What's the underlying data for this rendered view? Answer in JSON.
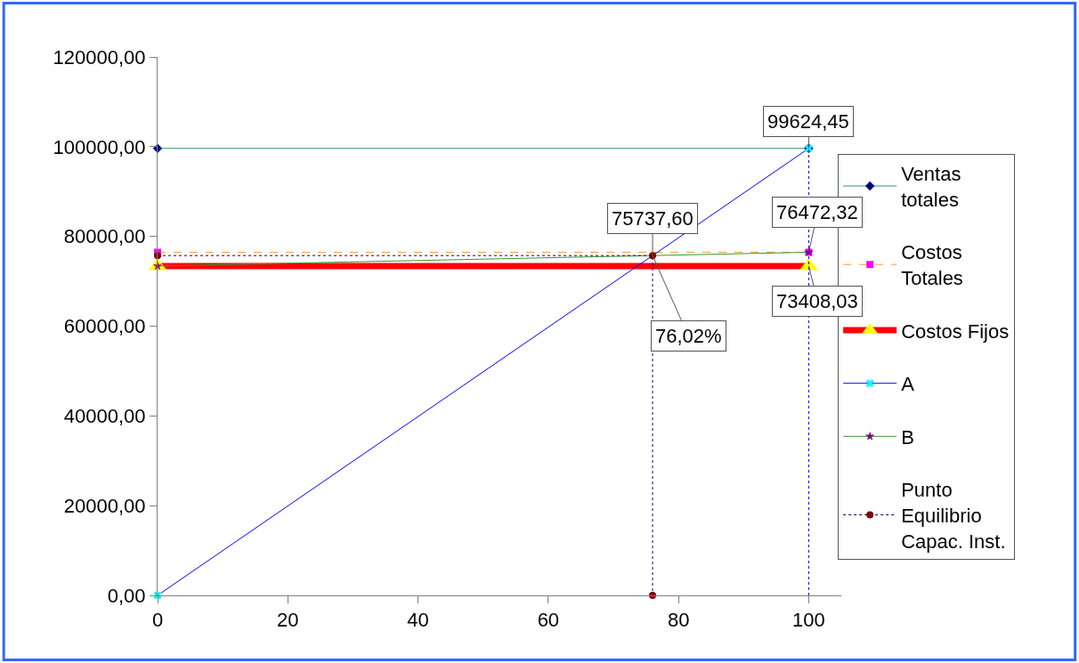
{
  "chart_data": {
    "type": "line",
    "xlim": [
      0,
      105
    ],
    "xticks": [
      0,
      20,
      40,
      60,
      80,
      100
    ],
    "ylim": [
      0,
      120000
    ],
    "yticks": [
      {
        "value": 0,
        "label": "0,00"
      },
      {
        "value": 20000,
        "label": "20000,00"
      },
      {
        "value": 40000,
        "label": "40000,00"
      },
      {
        "value": 60000,
        "label": "60000,00"
      },
      {
        "value": 80000,
        "label": "80000,00"
      },
      {
        "value": 100000,
        "label": "100000,00"
      },
      {
        "value": 120000,
        "label": "120000,00"
      }
    ],
    "grid": false,
    "legend": "right",
    "series": [
      {
        "name": "Ventas totales",
        "color": "#339966",
        "colors": [
          "#000080",
          "#000080"
        ],
        "marker": "diamond",
        "line_style": "solid",
        "x": [
          0,
          100
        ],
        "values": [
          99624.45,
          99624.45
        ],
        "value_labels": [
          null,
          "99624,45"
        ]
      },
      {
        "name": "Costos Totales",
        "color": "#ff9933",
        "colors": [
          "#ff00ff",
          "#ff00ff"
        ],
        "marker": "square",
        "line_style": "dashed",
        "x": [
          0,
          100
        ],
        "values": [
          76472.32,
          76472.32
        ],
        "value_labels": [
          null,
          "76472,32"
        ]
      },
      {
        "name": "Costos Fijos",
        "color": "#ff0000",
        "colors": [
          "#ffff00",
          "#ffff00"
        ],
        "marker": "triangle",
        "line_style": "solid",
        "x": [
          0,
          100
        ],
        "values": [
          73408.03,
          73408.03
        ],
        "value_labels": [
          null,
          "73408,03"
        ]
      },
      {
        "name": "A",
        "color": "#0000ff",
        "colors": [
          "#00ffff",
          "#00ffff"
        ],
        "marker": "cross",
        "line_style": "solid",
        "x": [
          0,
          100
        ],
        "values": [
          0,
          99624.45
        ]
      },
      {
        "name": "B",
        "color": "#339933",
        "colors": [
          "#800080",
          "#800080"
        ],
        "marker": "star",
        "line_style": "solid",
        "x": [
          0,
          100
        ],
        "values": [
          73408.03,
          76472.32
        ]
      },
      {
        "name": "Punto Equilibrio Capac. Inst.",
        "color": "#000080",
        "colors": [
          "#800000",
          "#800000",
          "#800000"
        ],
        "marker": "circle",
        "line_style": "dotted",
        "x": [
          0,
          76.02,
          76.02
        ],
        "values": [
          75737.6,
          75737.6,
          0
        ],
        "value_labels": [
          null,
          "75737,60",
          null
        ]
      },
      {
        "color": "#0000ff",
        "marker": "none",
        "line_style": "dotted",
        "x": [
          100,
          100
        ],
        "values": [
          0,
          99624.45
        ]
      }
    ],
    "annotations": [
      {
        "text": "76,02%",
        "x": 76.02,
        "y": 75737.6
      }
    ]
  }
}
